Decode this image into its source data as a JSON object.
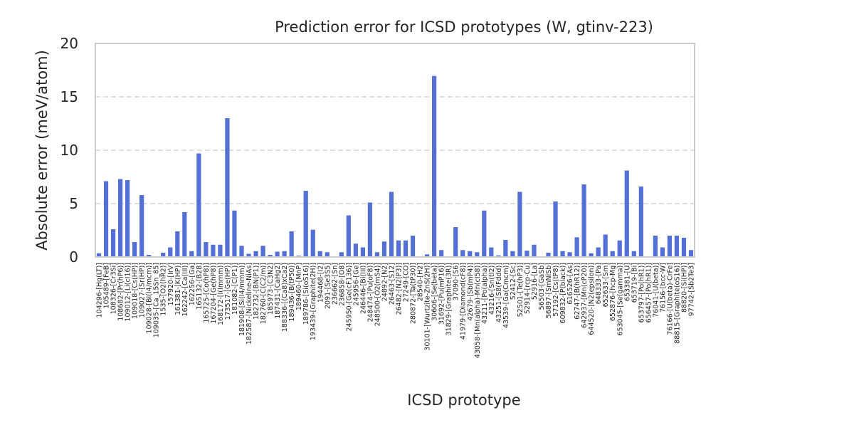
{
  "chart_data": {
    "type": "bar",
    "title": "Prediction error for ICSD prototypes (W, gtinv-223)",
    "xlabel": "ICSD prototype",
    "ylabel": "Absolute error (meV/atom)",
    "ylim": [
      0,
      20
    ],
    "yticks": [
      0,
      5,
      10,
      15,
      20
    ],
    "grid": "y-dashed",
    "bar_color": "#5470d6",
    "categories": [
      "104296-[Hg(LT)]",
      "105489-[FeB]",
      "108326-[Cr3Si]",
      "108682-[Pr(hP6)]",
      "109012-[Li(cI16)]",
      "109018-[Cs(HP)]",
      "109027-[Sr(HP)]",
      "109028-[Bi(I4/mcm)]",
      "109035-[Ca_15Sn_85]",
      "1535-[O2(hR2)]",
      "157920-[IrV]",
      "161381-[K(HP)]",
      "162242-[Ca(III)]",
      "162256-[Ga]",
      "165132-[B28]",
      "165725-[Co(hP8)]",
      "167204-[Ge(hP8)]",
      "168172-[I(Immm)]",
      "173517-[Ge(HP)]",
      "181082-[C(P1)]",
      "181908-[Si(I4/mmm)]",
      "182587-[Nickeline-NiAs]",
      "182732-[BN(P1)]",
      "182760-[C(C2/m)]",
      "185973-[C3N2]",
      "187431-[CaHg2]",
      "188336-[(Ca8)xCa2]",
      "189436-[B(tP50)]",
      "189460-[MnP]",
      "189786-[Si(oS16)]",
      "193439-[Graphite(2H)]",
      "194468-[I2]",
      "2091-[Se3S5]",
      "236662-[Sn]",
      "236858-[O8]",
      "245950-[Ge(cF136)]",
      "245956-[Ge]",
      "246446-[Bi(III)]",
      "248474-[Pu(oF8)]",
      "248500-[O2(mS4)]",
      "24892-[N2]",
      "26463-[S12]",
      "26482-[N2(P3)]",
      "27249-[CO]",
      "280872-[Ta(tP30)]",
      "28540-[H2]",
      "30101-[Wurtzite-ZnS(2H)]",
      "30606-[Se(beta)]",
      "31692-[Pu(mP16)]",
      "31829-[Graphite(3R)]",
      "37090-[S6]",
      "41979-[Diamond(cF8)]",
      "42679-[Sb(mP4)]",
      "43058-[Mn(alpha)-Mn(cI58)]",
      "43211-[Po(alpha)]",
      "43216-[Sn(tI2)]",
      "43251-[S8(Fddd)]",
      "43539-[Ga(Cmcm)]",
      "52412-[Sc]",
      "52501-[Te(hP3)]",
      "52914-[rcp-Cu]",
      "52916-[La]",
      "56503-[GaSb]",
      "56897-[SmNiSb]",
      "57192-[Cs(tP8)]",
      "609832-[P(black)]",
      "616526-[As]",
      "62747-[B(hR12)]",
      "642937-[Mn(cP20)]",
      "644520-[N2(epsilon)]",
      "648333-[Pa]",
      "652633-[Sm]",
      "652876-[hcp-Mg]",
      "653045-[Se(gamma)]",
      "653381-[U]",
      "653719-[Bi]",
      "653797-[Po(hR1)]",
      "656457-[Po(hR1)]",
      "76041-[U(beta)]",
      "76156-[bcc-W]",
      "76166-[U(beta)-CrFe]",
      "88815-[Graphite(oS16)]",
      "88820-[Si(HP)]",
      "97742-[Sb2Te3]"
    ],
    "values": [
      0.35,
      7.1,
      2.6,
      7.3,
      7.2,
      1.4,
      5.8,
      0.2,
      0.05,
      0.4,
      0.9,
      2.4,
      4.2,
      0.55,
      9.7,
      1.4,
      1.15,
      1.15,
      13.0,
      4.35,
      1.05,
      0.3,
      0.55,
      1.05,
      0.2,
      0.5,
      0.55,
      2.4,
      0.12,
      6.2,
      2.55,
      0.55,
      0.45,
      0.05,
      0.45,
      3.9,
      1.25,
      0.9,
      5.1,
      0.45,
      1.45,
      6.1,
      1.55,
      1.55,
      2.0,
      0.03,
      0.25,
      16.95,
      0.65,
      0.03,
      2.8,
      0.65,
      0.55,
      0.45,
      4.35,
      0.9,
      0.15,
      1.6,
      0.55,
      6.1,
      0.6,
      1.15,
      0.03,
      0.4,
      5.2,
      0.55,
      0.45,
      1.85,
      6.8,
      0.35,
      0.9,
      2.1,
      0.55,
      1.55,
      8.1,
      0.55,
      6.6,
      0.03,
      2.0,
      0.9,
      2.0,
      2.0,
      1.8,
      0.65
    ]
  }
}
